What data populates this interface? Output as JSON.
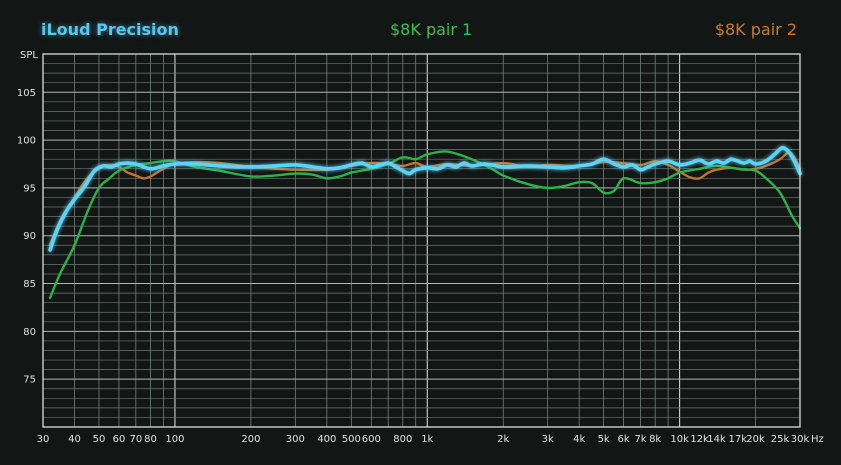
{
  "chart_data": {
    "type": "line",
    "title": "",
    "ylabel": "SPL",
    "xlabel": "Hz",
    "xscale": "log",
    "xlim": [
      30,
      30000
    ],
    "ylim": [
      70,
      109
    ],
    "grid": true,
    "legend_placement": "top",
    "y_tick_labels": [
      "75",
      "80",
      "85",
      "90",
      "95",
      "100",
      "105"
    ],
    "x_tick_labels": [
      {
        "f": 30,
        "t": "30"
      },
      {
        "f": 40,
        "t": "40"
      },
      {
        "f": 50,
        "t": "50"
      },
      {
        "f": 60,
        "t": "60"
      },
      {
        "f": 70,
        "t": "70"
      },
      {
        "f": 80,
        "t": "80"
      },
      {
        "f": 100,
        "t": "100"
      },
      {
        "f": 200,
        "t": "200"
      },
      {
        "f": 300,
        "t": "300"
      },
      {
        "f": 400,
        "t": "400"
      },
      {
        "f": 500,
        "t": "500"
      },
      {
        "f": 600,
        "t": "600"
      },
      {
        "f": 800,
        "t": "800"
      },
      {
        "f": 1000,
        "t": "1k"
      },
      {
        "f": 2000,
        "t": "2k"
      },
      {
        "f": 3000,
        "t": "3k"
      },
      {
        "f": 4000,
        "t": "4k"
      },
      {
        "f": 5000,
        "t": "5k"
      },
      {
        "f": 6000,
        "t": "6k"
      },
      {
        "f": 7000,
        "t": "7k"
      },
      {
        "f": 8000,
        "t": "8k"
      },
      {
        "f": 10000,
        "t": "10k"
      },
      {
        "f": 12000,
        "t": "12k"
      },
      {
        "f": 14000,
        "t": "14k"
      },
      {
        "f": 17000,
        "t": "17k"
      },
      {
        "f": 20000,
        "t": "20k"
      },
      {
        "f": 25000,
        "t": "25k"
      },
      {
        "f": 30000,
        "t": "30k"
      }
    ],
    "series": [
      {
        "name": "$8K pair 2",
        "color": "#c0752c",
        "values": [
          [
            32,
            89.0
          ],
          [
            35,
            91.5
          ],
          [
            40,
            94.0
          ],
          [
            45,
            96.0
          ],
          [
            50,
            97.0
          ],
          [
            55,
            97.4
          ],
          [
            60,
            97.2
          ],
          [
            65,
            96.6
          ],
          [
            70,
            96.3
          ],
          [
            75,
            96.0
          ],
          [
            80,
            96.2
          ],
          [
            90,
            97.0
          ],
          [
            100,
            97.5
          ],
          [
            120,
            97.7
          ],
          [
            150,
            97.6
          ],
          [
            200,
            97.2
          ],
          [
            250,
            97.0
          ],
          [
            300,
            96.9
          ],
          [
            400,
            96.9
          ],
          [
            500,
            97.3
          ],
          [
            600,
            97.6
          ],
          [
            700,
            97.5
          ],
          [
            800,
            97.3
          ],
          [
            900,
            97.6
          ],
          [
            1000,
            97.2
          ],
          [
            1200,
            97.5
          ],
          [
            1500,
            97.3
          ],
          [
            2000,
            97.6
          ],
          [
            2500,
            97.2
          ],
          [
            3000,
            97.4
          ],
          [
            4000,
            97.3
          ],
          [
            5000,
            97.7
          ],
          [
            6000,
            97.6
          ],
          [
            7000,
            97.4
          ],
          [
            8000,
            97.8
          ],
          [
            9000,
            97.4
          ],
          [
            10000,
            96.7
          ],
          [
            11000,
            96.1
          ],
          [
            12000,
            96.0
          ],
          [
            13000,
            96.6
          ],
          [
            14000,
            96.9
          ],
          [
            16000,
            97.1
          ],
          [
            18000,
            96.9
          ],
          [
            20000,
            97.0
          ],
          [
            22000,
            97.3
          ],
          [
            25000,
            98.0
          ],
          [
            27000,
            98.7
          ],
          [
            28500,
            98.2
          ],
          [
            30000,
            97.0
          ]
        ]
      },
      {
        "name": "$8K pair 1",
        "color": "#2db14a",
        "values": [
          [
            32,
            83.5
          ],
          [
            35,
            86.0
          ],
          [
            40,
            89.0
          ],
          [
            45,
            92.5
          ],
          [
            50,
            95.0
          ],
          [
            55,
            96.0
          ],
          [
            60,
            96.8
          ],
          [
            70,
            97.4
          ],
          [
            80,
            97.6
          ],
          [
            90,
            97.8
          ],
          [
            100,
            97.8
          ],
          [
            120,
            97.2
          ],
          [
            150,
            96.8
          ],
          [
            200,
            96.2
          ],
          [
            250,
            96.3
          ],
          [
            300,
            96.5
          ],
          [
            350,
            96.4
          ],
          [
            400,
            96.0
          ],
          [
            450,
            96.2
          ],
          [
            500,
            96.6
          ],
          [
            600,
            97.0
          ],
          [
            700,
            97.5
          ],
          [
            800,
            98.2
          ],
          [
            900,
            98.0
          ],
          [
            1000,
            98.5
          ],
          [
            1200,
            98.8
          ],
          [
            1500,
            98.0
          ],
          [
            1800,
            97.0
          ],
          [
            2000,
            96.3
          ],
          [
            2500,
            95.4
          ],
          [
            3000,
            95.0
          ],
          [
            3500,
            95.2
          ],
          [
            4000,
            95.6
          ],
          [
            4500,
            95.5
          ],
          [
            5000,
            94.5
          ],
          [
            5500,
            94.7
          ],
          [
            6000,
            96.0
          ],
          [
            7000,
            95.5
          ],
          [
            8000,
            95.6
          ],
          [
            9000,
            96.0
          ],
          [
            10000,
            96.6
          ],
          [
            12000,
            97.0
          ],
          [
            14000,
            97.3
          ],
          [
            17000,
            97.0
          ],
          [
            20000,
            96.8
          ],
          [
            22000,
            96.0
          ],
          [
            25000,
            94.5
          ],
          [
            28000,
            92.0
          ],
          [
            30000,
            90.8
          ]
        ]
      },
      {
        "name": "iLoud Precision",
        "color": "#5fd3f5",
        "values": [
          [
            32,
            88.5
          ],
          [
            34,
            90.5
          ],
          [
            37,
            92.5
          ],
          [
            40,
            93.8
          ],
          [
            44,
            95.2
          ],
          [
            48,
            96.8
          ],
          [
            52,
            97.3
          ],
          [
            56,
            97.2
          ],
          [
            60,
            97.5
          ],
          [
            65,
            97.6
          ],
          [
            70,
            97.5
          ],
          [
            80,
            97.0
          ],
          [
            90,
            97.3
          ],
          [
            100,
            97.5
          ],
          [
            120,
            97.5
          ],
          [
            150,
            97.3
          ],
          [
            200,
            97.2
          ],
          [
            250,
            97.3
          ],
          [
            300,
            97.4
          ],
          [
            350,
            97.2
          ],
          [
            400,
            97.0
          ],
          [
            450,
            97.1
          ],
          [
            500,
            97.4
          ],
          [
            550,
            97.6
          ],
          [
            600,
            97.2
          ],
          [
            650,
            97.4
          ],
          [
            700,
            97.6
          ],
          [
            750,
            97.2
          ],
          [
            800,
            96.8
          ],
          [
            850,
            96.5
          ],
          [
            900,
            96.9
          ],
          [
            1000,
            97.1
          ],
          [
            1100,
            97.0
          ],
          [
            1200,
            97.4
          ],
          [
            1300,
            97.2
          ],
          [
            1400,
            97.6
          ],
          [
            1500,
            97.3
          ],
          [
            1700,
            97.5
          ],
          [
            2000,
            97.2
          ],
          [
            2500,
            97.3
          ],
          [
            3000,
            97.2
          ],
          [
            3500,
            97.1
          ],
          [
            4000,
            97.3
          ],
          [
            4500,
            97.5
          ],
          [
            5000,
            98.0
          ],
          [
            5500,
            97.5
          ],
          [
            6000,
            97.2
          ],
          [
            6500,
            97.4
          ],
          [
            7000,
            96.9
          ],
          [
            7500,
            97.2
          ],
          [
            8000,
            97.5
          ],
          [
            9000,
            97.8
          ],
          [
            10000,
            97.4
          ],
          [
            11000,
            97.6
          ],
          [
            12000,
            97.9
          ],
          [
            13000,
            97.5
          ],
          [
            14000,
            97.8
          ],
          [
            15000,
            97.6
          ],
          [
            16000,
            98.0
          ],
          [
            17000,
            97.8
          ],
          [
            18000,
            97.6
          ],
          [
            19000,
            97.8
          ],
          [
            20000,
            97.5
          ],
          [
            22000,
            97.8
          ],
          [
            24000,
            98.6
          ],
          [
            25500,
            99.2
          ],
          [
            27000,
            98.8
          ],
          [
            28500,
            97.8
          ],
          [
            30000,
            96.5
          ]
        ]
      }
    ]
  }
}
